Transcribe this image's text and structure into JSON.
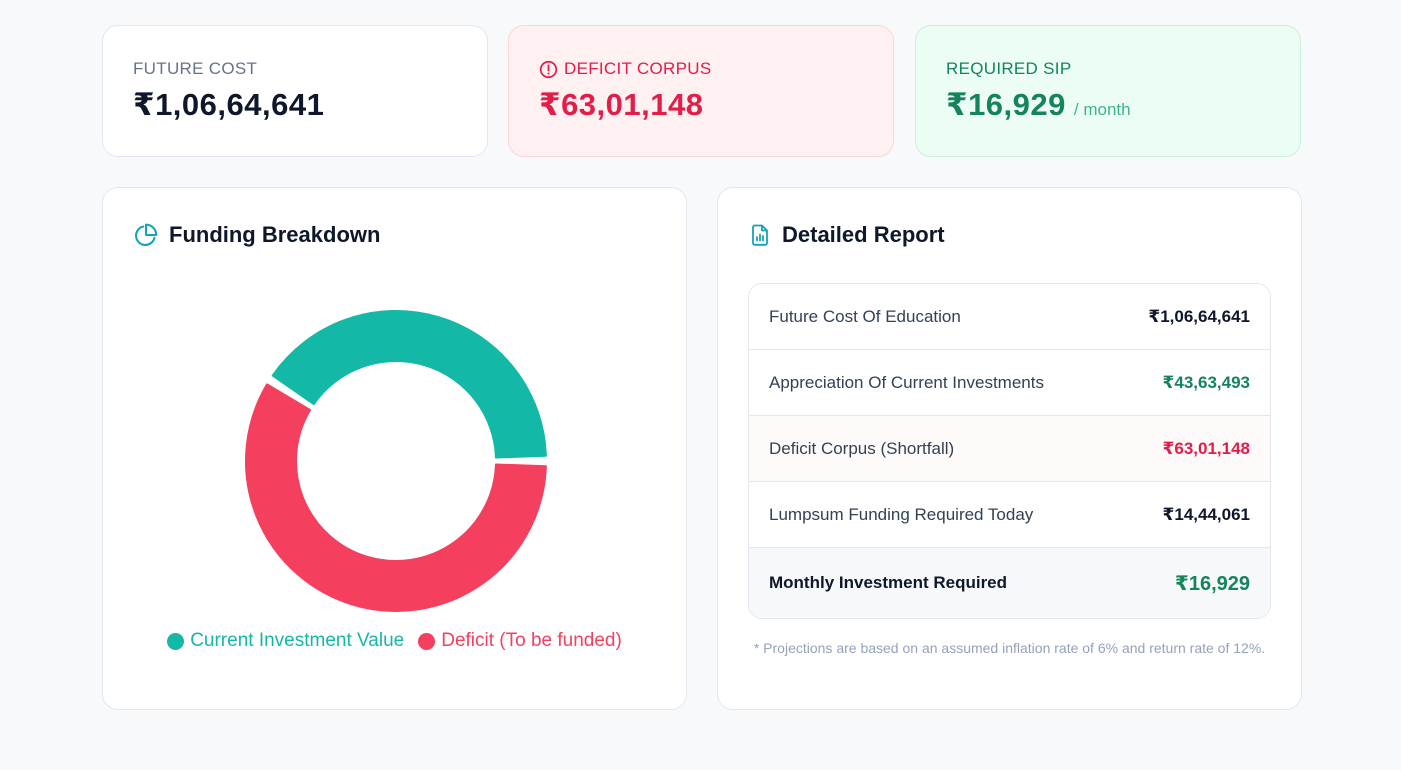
{
  "summary": {
    "future_cost": {
      "label": "FUTURE COST",
      "value": "₹1,06,64,641"
    },
    "deficit_corpus": {
      "label": "DEFICIT CORPUS",
      "value": "₹63,01,148",
      "icon": "alert-circle-icon"
    },
    "required_sip": {
      "label": "REQUIRED SIP",
      "value": "₹16,929",
      "suffix": "/ month"
    }
  },
  "funding": {
    "title": "Funding Breakdown",
    "icon": "pie-chart-icon",
    "legend": [
      "Current Investment Value",
      "Deficit (To be funded)"
    ]
  },
  "chart_data": {
    "type": "pie",
    "style": "donut",
    "series": [
      {
        "name": "Current Investment Value",
        "value": 4363493,
        "color": "#14b8a6"
      },
      {
        "name": "Deficit (To be funded)",
        "value": 6301148,
        "color": "#f43f5e"
      }
    ]
  },
  "report": {
    "title": "Detailed Report",
    "icon": "file-chart-icon",
    "rows": [
      {
        "label": "Future Cost Of Education",
        "value": "₹1,06,64,641"
      },
      {
        "label": "Appreciation Of Current Investments",
        "value": "₹43,63,493"
      },
      {
        "label": "Deficit Corpus (Shortfall)",
        "value": "₹63,01,148"
      },
      {
        "label": "Lumpsum Funding Required Today",
        "value": "₹14,44,061"
      },
      {
        "label": "Monthly Investment Required",
        "value": "₹16,929"
      }
    ],
    "footnote": "* Projections are based on an assumed inflation rate of 6% and return rate of 12%."
  },
  "colors": {
    "teal": "#14b8a6",
    "red": "#f43f5e",
    "green": "#15845a",
    "deficit": "#e11d48"
  }
}
